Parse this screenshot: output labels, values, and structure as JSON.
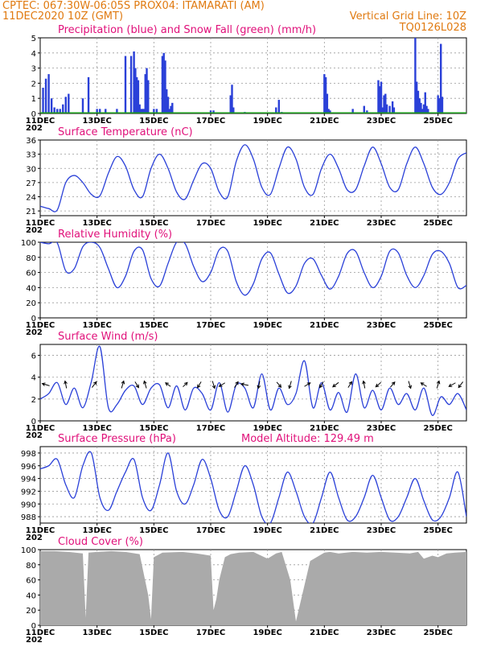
{
  "header": {
    "line1_left": "CPTEC:   067:30W-06:05S   PROX04: ITAMARATI (AM)",
    "line2_left": "11DEC2020 10Z (GMT)",
    "line2_right": "Vertical Grid Line: 10Z",
    "line3_right": "TQ0126L028"
  },
  "colors": {
    "line": "#2a40d8",
    "precip": "#2a40d8",
    "snow": "#1a9a1a",
    "cloud": "#aaaaaa",
    "title": "#e0107a",
    "header": "#e07a10"
  },
  "x_axis": {
    "labels": [
      "11DEC",
      "13DEC",
      "15DEC",
      "17DEC",
      "19DEC",
      "21DEC",
      "23DEC",
      "25DEC"
    ],
    "partial_year": "202"
  },
  "chart_data": [
    {
      "type": "bar",
      "title": "Precipitation (blue) and Snow Fall (green) (mm/h)",
      "ylim": [
        0,
        5
      ],
      "yticks": [
        "0",
        "1",
        "2",
        "3",
        "4",
        "5"
      ],
      "x_start": "11DEC2020 10Z",
      "x_end": "26DEC2020 10Z",
      "series": [
        {
          "name": "Precipitation",
          "x_days": [
            0.1,
            0.2,
            0.3,
            0.4,
            0.5,
            0.6,
            0.7,
            0.8,
            0.9,
            1.0,
            1.5,
            1.7,
            2.0,
            2.1,
            2.3,
            2.7,
            3.0,
            3.2,
            3.3,
            3.35,
            3.4,
            3.45,
            3.5,
            3.55,
            3.6,
            3.65,
            3.7,
            3.75,
            3.8,
            4.0,
            4.1,
            4.3,
            4.35,
            4.4,
            4.45,
            4.5,
            4.55,
            4.6,
            4.65,
            6.0,
            6.1,
            6.7,
            6.75,
            6.8,
            7.2,
            8.3,
            8.4,
            8.5,
            10.0,
            10.05,
            10.1,
            10.15,
            10.2,
            11.0,
            11.4,
            11.5,
            11.9,
            11.95,
            12.0,
            12.05,
            12.1,
            12.15,
            12.2,
            12.3,
            12.4,
            12.45,
            13.2,
            13.25,
            13.3,
            13.35,
            13.4,
            13.45,
            13.5,
            13.55,
            13.6,
            13.65,
            14.0,
            14.05,
            14.1,
            14.15
          ],
          "values": [
            1.7,
            2.3,
            2.6,
            1.0,
            0.4,
            0.3,
            0.3,
            0.6,
            1.1,
            1.3,
            1.0,
            2.4,
            0.3,
            0.3,
            0.3,
            0.3,
            3.8,
            3.8,
            4.1,
            3.0,
            2.4,
            2.2,
            0.6,
            0.3,
            0.3,
            0.3,
            2.6,
            3.0,
            2.2,
            0.3,
            0.3,
            3.8,
            4.0,
            3.5,
            1.6,
            1.1,
            0.3,
            0.5,
            0.7,
            0.2,
            0.2,
            1.2,
            1.9,
            0.4,
            0.1,
            0.4,
            0.9,
            0.1,
            2.6,
            2.4,
            1.3,
            0.3,
            0.2,
            0.3,
            0.5,
            0.2,
            2.2,
            1.8,
            2.1,
            0.4,
            1.2,
            1.3,
            0.6,
            0.5,
            0.8,
            0.4,
            5.0,
            2.1,
            1.5,
            1.0,
            0.7,
            0.3,
            0.6,
            1.4,
            0.5,
            0.3,
            1.2,
            1.0,
            4.6,
            1.1
          ]
        },
        {
          "name": "Snow Fall",
          "values": [
            0
          ]
        }
      ]
    },
    {
      "type": "line",
      "title": "Surface Temperature (nC)",
      "ylim": [
        20,
        36
      ],
      "yticks": [
        "21",
        "24",
        "27",
        "30",
        "33",
        "36"
      ],
      "series": [
        {
          "name": "Temperature",
          "x_days": [
            0,
            0.3,
            0.6,
            0.9,
            1.2,
            1.5,
            1.8,
            2.1,
            2.4,
            2.7,
            3.0,
            3.3,
            3.6,
            3.9,
            4.2,
            4.5,
            4.8,
            5.1,
            5.4,
            5.7,
            6.0,
            6.3,
            6.6,
            6.9,
            7.2,
            7.5,
            7.8,
            8.1,
            8.4,
            8.7,
            9.0,
            9.3,
            9.6,
            9.9,
            10.2,
            10.5,
            10.8,
            11.1,
            11.4,
            11.7,
            12.0,
            12.3,
            12.6,
            12.9,
            13.2,
            13.5,
            13.8,
            14.1,
            14.4,
            14.7,
            15.0
          ],
          "values": [
            22,
            21.5,
            21.2,
            27,
            28.5,
            27,
            24.5,
            24.2,
            29,
            32.5,
            30.5,
            25.5,
            24,
            30,
            33,
            30,
            25,
            23.5,
            27.5,
            31,
            30,
            25,
            24,
            31.5,
            35,
            32,
            26,
            24.5,
            30,
            34.5,
            32,
            26,
            24.5,
            30,
            33,
            30,
            25.5,
            25.5,
            30.5,
            34.5,
            31,
            26,
            25.5,
            31,
            34.5,
            31,
            26,
            24.5,
            27,
            32,
            33.3
          ]
        }
      ]
    },
    {
      "type": "line",
      "title": "Relative Humidity (%)",
      "ylim": [
        0,
        100
      ],
      "yticks": [
        "0",
        "20",
        "40",
        "60",
        "80",
        "100"
      ],
      "series": [
        {
          "name": "Relative Humidity",
          "x_days": [
            0,
            0.3,
            0.6,
            0.9,
            1.2,
            1.5,
            1.8,
            2.1,
            2.4,
            2.7,
            3.0,
            3.3,
            3.6,
            3.9,
            4.2,
            4.5,
            4.8,
            5.1,
            5.4,
            5.7,
            6.0,
            6.3,
            6.6,
            6.9,
            7.2,
            7.5,
            7.8,
            8.1,
            8.4,
            8.7,
            9.0,
            9.3,
            9.6,
            9.9,
            10.2,
            10.5,
            10.8,
            11.1,
            11.4,
            11.7,
            12.0,
            12.3,
            12.6,
            12.9,
            13.2,
            13.5,
            13.8,
            14.1,
            14.4,
            14.7,
            15.0
          ],
          "values": [
            100,
            98,
            99,
            62,
            65,
            94,
            100,
            93,
            65,
            40,
            55,
            88,
            90,
            52,
            42,
            72,
            100,
            98,
            68,
            48,
            60,
            90,
            88,
            48,
            30,
            45,
            78,
            86,
            58,
            33,
            42,
            72,
            78,
            56,
            38,
            55,
            85,
            88,
            60,
            40,
            55,
            88,
            86,
            56,
            40,
            56,
            84,
            88,
            72,
            40,
            43
          ]
        }
      ]
    },
    {
      "type": "line",
      "title": "Surface Wind (m/s)",
      "ylim": [
        0,
        7
      ],
      "yticks": [
        "0",
        "2",
        "4",
        "6"
      ],
      "series": [
        {
          "name": "Wind Speed",
          "x_days": [
            0,
            0.3,
            0.6,
            0.9,
            1.2,
            1.5,
            1.8,
            2.1,
            2.4,
            2.7,
            3.0,
            3.3,
            3.6,
            3.9,
            4.2,
            4.5,
            4.8,
            5.1,
            5.4,
            5.7,
            6.0,
            6.3,
            6.6,
            6.9,
            7.2,
            7.5,
            7.8,
            8.1,
            8.4,
            8.7,
            9.0,
            9.3,
            9.6,
            9.9,
            10.2,
            10.5,
            10.8,
            11.1,
            11.4,
            11.7,
            12.0,
            12.3,
            12.6,
            12.9,
            13.2,
            13.5,
            13.8,
            14.1,
            14.4,
            14.7,
            15.0
          ],
          "values": [
            2,
            2.5,
            3.5,
            1.5,
            3,
            1.2,
            3.6,
            6.8,
            1.2,
            1.5,
            2.8,
            3.2,
            1.5,
            3.0,
            3.3,
            1.2,
            3.2,
            1.0,
            3.0,
            2.5,
            1.0,
            3.5,
            0.8,
            3.3,
            3.0,
            1.2,
            4.3,
            1.0,
            3.0,
            1.5,
            2.5,
            5.5,
            1.2,
            3.5,
            1.0,
            2.6,
            0.8,
            4.3,
            1.2,
            2.8,
            1.0,
            3.0,
            1.5,
            2.5,
            1.0,
            3.0,
            0.5,
            2.2,
            1.5,
            2.5,
            1.0
          ]
        }
      ],
      "vectors": [
        {
          "x_day": 0.2,
          "u": -1,
          "v": 0.3
        },
        {
          "x_day": 0.9,
          "u": -0.2,
          "v": 1
        },
        {
          "x_day": 1.9,
          "u": 0.6,
          "v": 0.8
        },
        {
          "x_day": 2.9,
          "u": 0.3,
          "v": 1
        },
        {
          "x_day": 3.4,
          "u": 0.5,
          "v": -0.8
        },
        {
          "x_day": 3.7,
          "u": -0.3,
          "v": 1
        },
        {
          "x_day": 4.5,
          "u": -0.7,
          "v": 0.5
        },
        {
          "x_day": 5.1,
          "u": 0.6,
          "v": 0.6
        },
        {
          "x_day": 5.6,
          "u": -0.5,
          "v": -0.8
        },
        {
          "x_day": 6.1,
          "u": 0.3,
          "v": -1
        },
        {
          "x_day": 6.4,
          "u": -0.8,
          "v": -0.5
        },
        {
          "x_day": 6.9,
          "u": 0.5,
          "v": 0.8
        },
        {
          "x_day": 7.2,
          "u": -1,
          "v": 0.2
        },
        {
          "x_day": 7.7,
          "u": -0.2,
          "v": -1
        },
        {
          "x_day": 8.4,
          "u": 0.6,
          "v": -0.7
        },
        {
          "x_day": 8.8,
          "u": -0.3,
          "v": -1
        },
        {
          "x_day": 9.4,
          "u": 0.8,
          "v": 0.5
        },
        {
          "x_day": 9.9,
          "u": -0.5,
          "v": -0.8
        },
        {
          "x_day": 10.4,
          "u": -0.8,
          "v": -0.6
        },
        {
          "x_day": 10.9,
          "u": 0.5,
          "v": 0.8
        },
        {
          "x_day": 11.4,
          "u": -0.2,
          "v": 1
        },
        {
          "x_day": 11.9,
          "u": -0.7,
          "v": -0.6
        },
        {
          "x_day": 12.4,
          "u": 0.6,
          "v": 0.7
        },
        {
          "x_day": 13.0,
          "u": 0.3,
          "v": -1
        },
        {
          "x_day": 13.5,
          "u": -0.8,
          "v": 0.5
        },
        {
          "x_day": 14.0,
          "u": 0.3,
          "v": 1
        },
        {
          "x_day": 14.5,
          "u": -0.9,
          "v": -0.5
        },
        {
          "x_day": 14.8,
          "u": -0.6,
          "v": -0.8
        }
      ]
    },
    {
      "type": "line",
      "title": "Surface Pressure (hPa)",
      "subtitle": "Model Altitude: 129.49  m",
      "ylim": [
        987,
        999
      ],
      "yticks": [
        "988",
        "990",
        "992",
        "994",
        "996",
        "998"
      ],
      "series": [
        {
          "name": "Surface Pressure",
          "x_days": [
            0,
            0.3,
            0.6,
            0.9,
            1.2,
            1.5,
            1.8,
            2.1,
            2.4,
            2.7,
            3.0,
            3.3,
            3.6,
            3.9,
            4.2,
            4.5,
            4.8,
            5.1,
            5.4,
            5.7,
            6.0,
            6.3,
            6.6,
            6.9,
            7.2,
            7.5,
            7.8,
            8.1,
            8.4,
            8.7,
            9.0,
            9.3,
            9.6,
            9.9,
            10.2,
            10.5,
            10.8,
            11.1,
            11.4,
            11.7,
            12.0,
            12.3,
            12.6,
            12.9,
            13.2,
            13.5,
            13.8,
            14.1,
            14.4,
            14.7,
            15.0
          ],
          "values": [
            995.5,
            996,
            997,
            993,
            991,
            996,
            998,
            991,
            989,
            992,
            995,
            997,
            991,
            989,
            993,
            998,
            992,
            990,
            993,
            997,
            994,
            989,
            988,
            992,
            996,
            993,
            988,
            987,
            991,
            995,
            992,
            988,
            987,
            991,
            995,
            991,
            987.5,
            988,
            991,
            994.5,
            991,
            987.5,
            988,
            991,
            994,
            990.5,
            987.5,
            988,
            991,
            995,
            988
          ]
        }
      ]
    },
    {
      "type": "area",
      "title": "Cloud Cover (%)",
      "ylim": [
        0,
        100
      ],
      "yticks": [
        "0",
        "20",
        "40",
        "60",
        "80",
        "100"
      ],
      "series": [
        {
          "name": "Cloud Cover",
          "x_days": [
            0,
            0.5,
            1.0,
            1.5,
            1.6,
            1.7,
            2.0,
            2.5,
            3.0,
            3.5,
            3.8,
            3.9,
            4.0,
            4.3,
            5.0,
            5.5,
            6.0,
            6.1,
            6.2,
            6.3,
            6.5,
            6.7,
            7.0,
            7.5,
            8.0,
            8.3,
            8.5,
            8.8,
            9.0,
            9.5,
            10.0,
            10.2,
            10.5,
            11.0,
            11.5,
            12.0,
            12.5,
            13.0,
            13.3,
            13.5,
            13.8,
            14.0,
            14.3,
            14.6,
            15.0
          ],
          "values": [
            98,
            98,
            97,
            95,
            10,
            96,
            97,
            98,
            97,
            94,
            40,
            8,
            90,
            96,
            97,
            95,
            92,
            20,
            35,
            60,
            90,
            94,
            96,
            97,
            88,
            95,
            97,
            60,
            5,
            85,
            96,
            97,
            95,
            97,
            96,
            97,
            96,
            95,
            97,
            88,
            92,
            90,
            95,
            96,
            97
          ]
        }
      ]
    }
  ]
}
